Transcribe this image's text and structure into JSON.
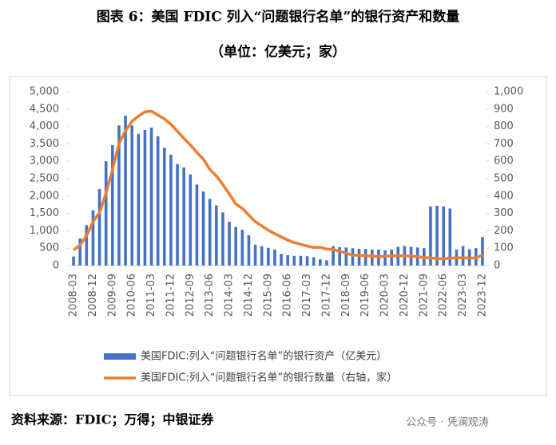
{
  "title": "图表 6：美国 FDIC 列入“问题银行名单”的银行资产和数量",
  "subtitle": "（单位：亿美元；家）",
  "source": "资料来源：FDIC；万得；中银证券",
  "watermark": "公众号 · 凭澜观涛",
  "chart_data": {
    "type": "bar+line",
    "categories": [
      "2008-03",
      null,
      null,
      "2008-12",
      null,
      null,
      "2009-09",
      null,
      null,
      "2010-06",
      null,
      null,
      "2011-03",
      null,
      null,
      "2011-12",
      null,
      null,
      "2012-09",
      null,
      null,
      "2013-06",
      null,
      null,
      "2014-03",
      null,
      null,
      "2014-12",
      null,
      null,
      "2015-09",
      null,
      null,
      "2016-06",
      null,
      null,
      "2017-03",
      null,
      null,
      "2017-12",
      null,
      null,
      "2018-09",
      null,
      null,
      "2019-06",
      null,
      null,
      "2020-03",
      null,
      null,
      "2020-12",
      null,
      null,
      "2021-09",
      null,
      null,
      "2022-06",
      null,
      null,
      "2023-03",
      null,
      null,
      "2023-12"
    ],
    "series": [
      {
        "name": "美国FDIC:列入“问题银行名单”的银行资产（亿美元）",
        "type": "bar",
        "color": "#4472c4",
        "values": [
          260,
          780,
          1160,
          1590,
          2200,
          3000,
          3460,
          4030,
          4310,
          4030,
          3790,
          3900,
          3970,
          3720,
          3390,
          3190,
          2920,
          2820,
          2620,
          2330,
          2130,
          1920,
          1730,
          1530,
          1260,
          1110,
          1030,
          870,
          600,
          560,
          510,
          460,
          340,
          300,
          280,
          280,
          270,
          240,
          180,
          150,
          560,
          530,
          520,
          500,
          480,
          480,
          460,
          460,
          440,
          460,
          540,
          560,
          540,
          520,
          500,
          1700,
          1720,
          1700,
          1640,
          460,
          560,
          470,
          500,
          820
        ]
      },
      {
        "name": "美国FDIC:列入“问题银行名单”的银行数量（右轴，家）",
        "type": "line",
        "color": "#ed7d31",
        "axis": "y2",
        "values": [
          90,
          117,
          171,
          252,
          305,
          416,
          552,
          702,
          775,
          829,
          860,
          884,
          888,
          865,
          844,
          813,
          772,
          732,
          694,
          651,
          612,
          553,
          515,
          467,
          411,
          354,
          329,
          291,
          253,
          228,
          203,
          183,
          165,
          147,
          132,
          123,
          112,
          104,
          105,
          95,
          92,
          82,
          71,
          60,
          59,
          56,
          55,
          51,
          54,
          56,
          56,
          56,
          55,
          51,
          46,
          44,
          40,
          39,
          42,
          45,
          45,
          43,
          44,
          60
        ]
      }
    ],
    "ylim": [
      0,
      5000
    ],
    "yticks": [
      0,
      500,
      {
        "value": 1000,
        "label": "1,000"
      },
      {
        "value": 1500,
        "label": "1,500"
      },
      {
        "value": 2000,
        "label": "2,000"
      },
      {
        "value": 2500,
        "label": "2,500"
      },
      {
        "value": 3000,
        "label": "3,000"
      },
      {
        "value": 3500,
        "label": "3,500"
      },
      {
        "value": 4000,
        "label": "4,000"
      },
      {
        "value": 4500,
        "label": "4,500"
      },
      {
        "value": 5000,
        "label": "5,000"
      }
    ],
    "y2lim": [
      0,
      1000
    ],
    "y2ticks": [
      0,
      100,
      200,
      300,
      400,
      500,
      600,
      700,
      800,
      900,
      {
        "value": 1000,
        "label": "1,000"
      }
    ],
    "legend": "bottom"
  }
}
